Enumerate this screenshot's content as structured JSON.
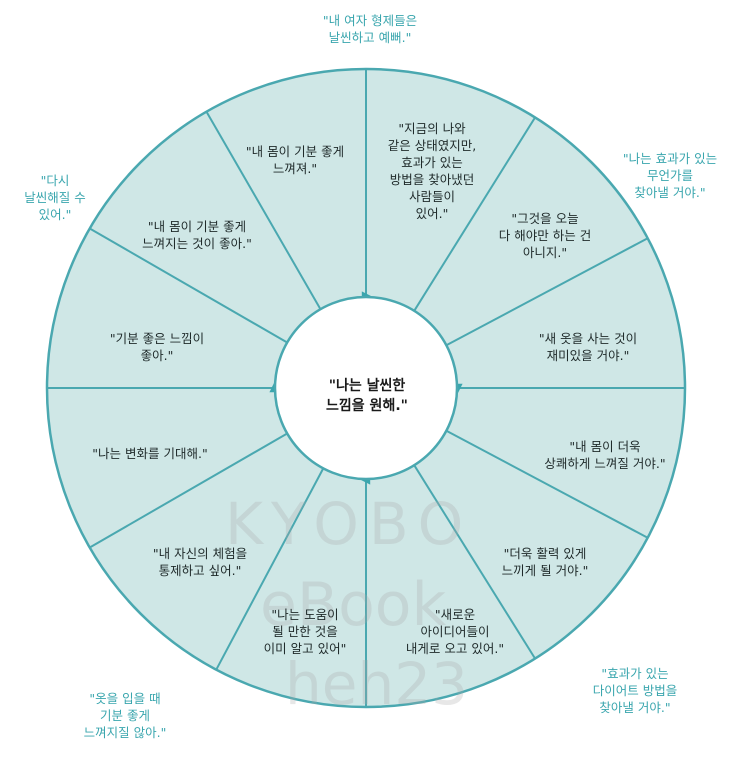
{
  "center": "\"나는 날씬한\n느낌을 원해.\"",
  "segments": [
    "\"지금의 나와\n같은 상태였지만,\n효과가 있는\n방법을 찾아냈던\n사람들이\n있어.\"",
    "\"그것을 오늘\n다 해야만 하는 건\n아니지.\"",
    "\"새 옷을 사는 것이\n재미있을 거야.\"",
    "\"내 몸이 더욱\n상쾌하게 느껴질 거야.\"",
    "\"더욱 활력 있게\n느끼게 될 거야.\"",
    "\"새로운\n아이디어들이\n내게로 오고 있어.\"",
    "\"나는 도움이\n될 만한 것을\n이미 알고 있어\"",
    "\"내 자신의 체험을\n통제하고 싶어.\"",
    "\"나는 변화를 기대해.\"",
    "\"기분 좋은 느낌이\n좋아.\"",
    "\"내 몸이 기분 좋게\n느껴지는 것이 좋아.\"",
    "\"내 몸이 기분 좋게\n느껴져.\""
  ],
  "outer_quotes": [
    "\"내 여자 형제들은\n날씬하고 예뻐.\"",
    "\"나는 효과가 있는\n무언가를\n찾아낼 거야.\"",
    "\"다시\n날씬해질 수\n있어.\"",
    "\"효과가 있는\n다이어트 방법을\n찾아낼 거야.\"",
    "\"옷을 입을 때\n기분 좋게\n느껴지질 않아.\""
  ],
  "watermark": {
    "line1": "KYOBO",
    "line2": "eBook",
    "line3": "heh23"
  },
  "colors": {
    "wheel_fill": "#cfe7e6",
    "stroke": "#4aa8b0",
    "outer_text": "#3aa6ae"
  }
}
